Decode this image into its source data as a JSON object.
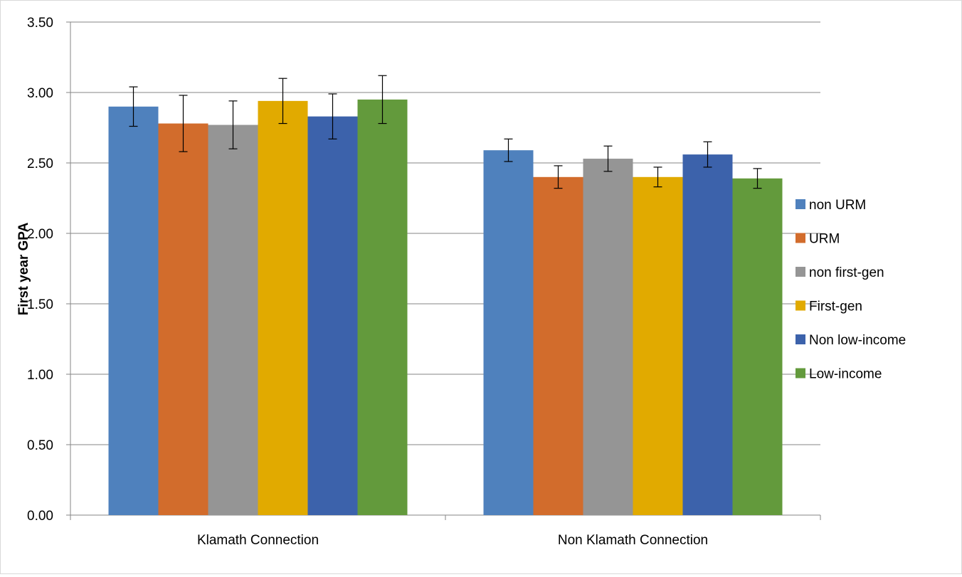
{
  "chart_data": {
    "type": "bar",
    "title": "",
    "xlabel": "",
    "ylabel": "First year GPA",
    "ylim": [
      0,
      3.5
    ],
    "yticks": [
      "0.00",
      "0.50",
      "1.00",
      "1.50",
      "2.00",
      "2.50",
      "3.00",
      "3.50"
    ],
    "ytick_values": [
      0,
      0.5,
      1.0,
      1.5,
      2.0,
      2.5,
      3.0,
      3.5
    ],
    "categories": [
      "Klamath Connection",
      "Non Klamath Connection"
    ],
    "grid": true,
    "legend_position": "right",
    "series": [
      {
        "name": "non URM",
        "color": "#4f81bd",
        "values": [
          2.9,
          2.59
        ],
        "error_low": [
          2.76,
          2.51
        ],
        "error_high": [
          3.04,
          2.67
        ]
      },
      {
        "name": "URM",
        "color": "#d26c2c",
        "values": [
          2.78,
          2.4
        ],
        "error_low": [
          2.58,
          2.32
        ],
        "error_high": [
          2.98,
          2.48
        ]
      },
      {
        "name": "non first-gen",
        "color": "#959595",
        "values": [
          2.77,
          2.53
        ],
        "error_low": [
          2.6,
          2.44
        ],
        "error_high": [
          2.94,
          2.62
        ]
      },
      {
        "name": "First-gen",
        "color": "#e1aa00",
        "values": [
          2.94,
          2.4
        ],
        "error_low": [
          2.78,
          2.33
        ],
        "error_high": [
          3.1,
          2.47
        ]
      },
      {
        "name": "Non low-income",
        "color": "#3c62ab",
        "values": [
          2.83,
          2.56
        ],
        "error_low": [
          2.67,
          2.47
        ],
        "error_high": [
          2.99,
          2.65
        ]
      },
      {
        "name": "Low-income",
        "color": "#639a3c",
        "values": [
          2.95,
          2.39
        ],
        "error_low": [
          2.78,
          2.32
        ],
        "error_high": [
          3.12,
          2.46
        ]
      }
    ]
  }
}
